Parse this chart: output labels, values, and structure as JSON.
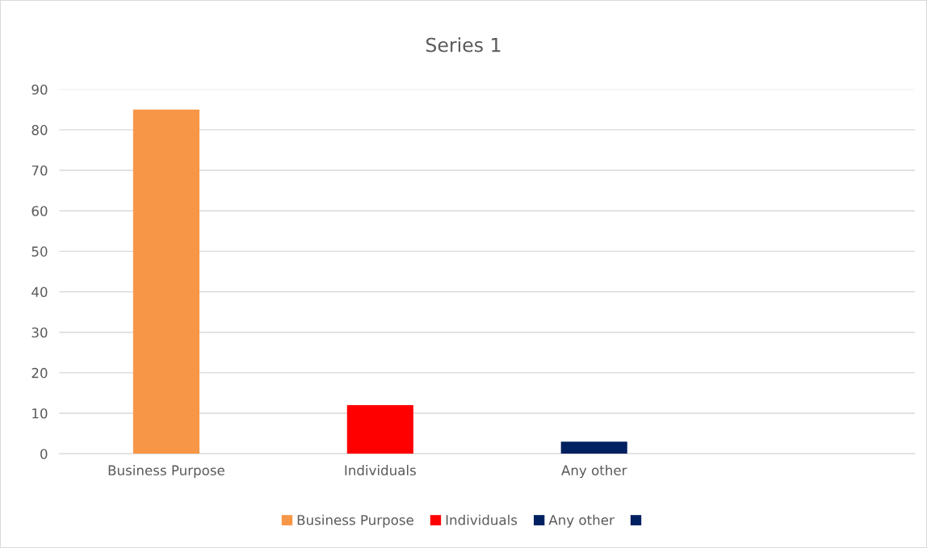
{
  "chart_data": {
    "type": "bar",
    "title": "Series 1",
    "categories": [
      "Business Purpose",
      "Individuals",
      "Any other",
      null
    ],
    "stacked": true,
    "series": [
      {
        "name": "Business Purpose",
        "color": "#f79646",
        "values": [
          85,
          null,
          null,
          null
        ]
      },
      {
        "name": "Individuals",
        "color": "#ff0000",
        "values": [
          null,
          12,
          null,
          null
        ]
      },
      {
        "name": "Any other",
        "color": "#002060",
        "values": [
          null,
          null,
          3,
          null
        ]
      },
      {
        "color": "#002060",
        "values": [
          null,
          null,
          null,
          null
        ]
      }
    ],
    "ylim": [
      0,
      90
    ],
    "yticks": [
      0,
      10,
      20,
      30,
      40,
      50,
      60,
      70,
      80,
      90
    ],
    "grid": "y",
    "legend": "bottom"
  }
}
